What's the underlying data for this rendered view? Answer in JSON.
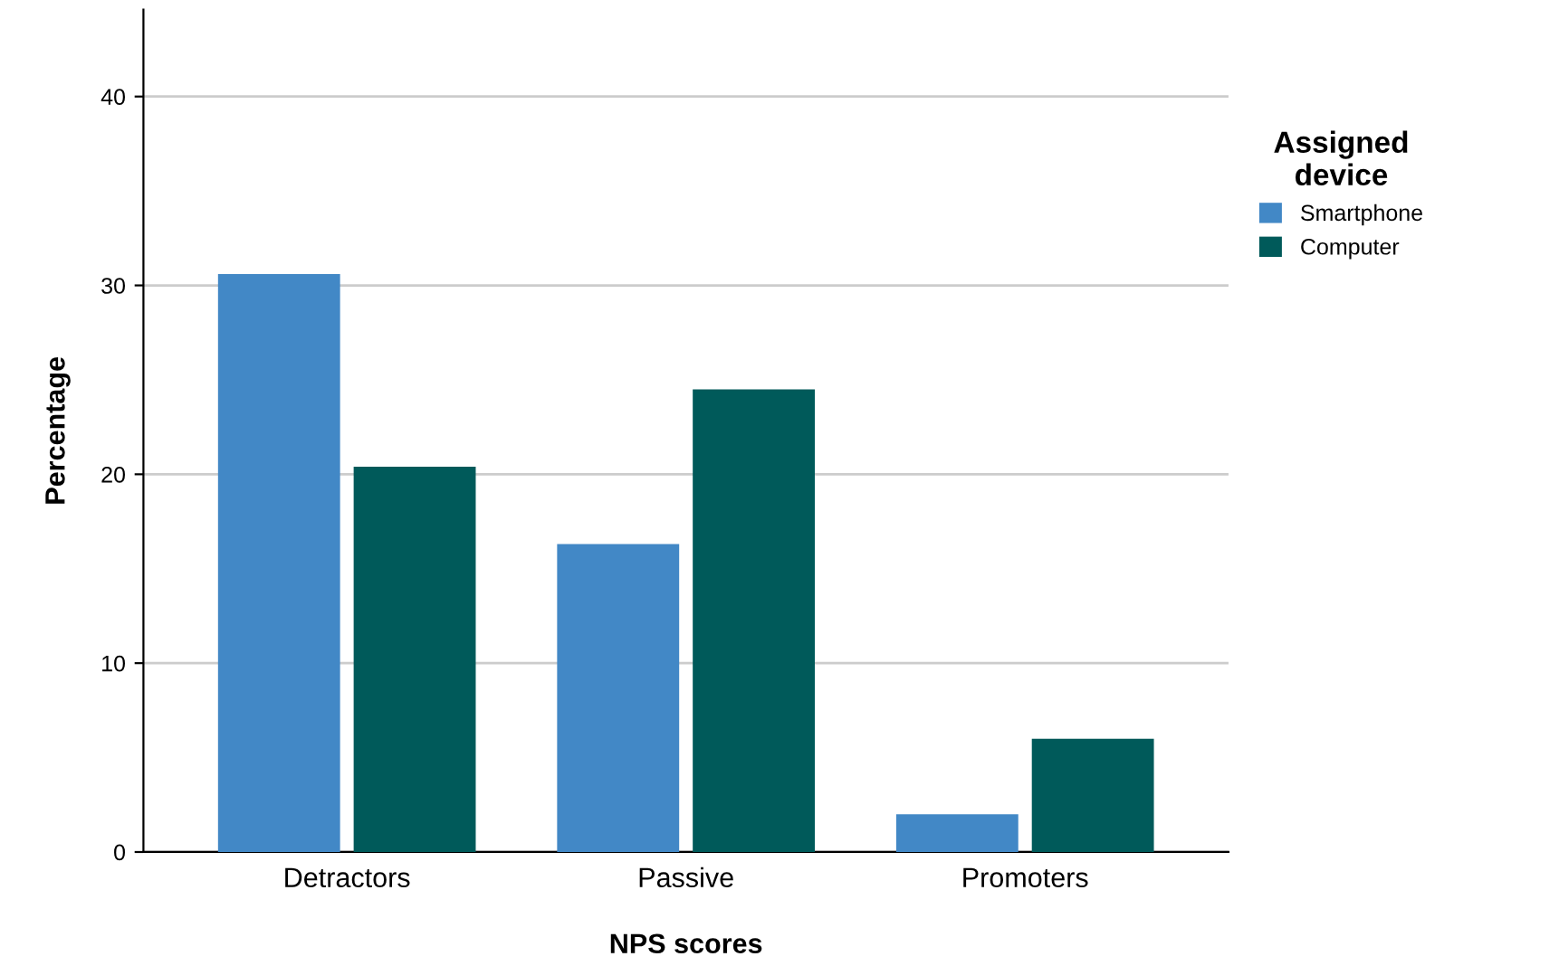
{
  "chart_data": {
    "type": "bar",
    "xlabel": "NPS scores",
    "ylabel": "Percentage",
    "legend_title": "Assigned\ndevice",
    "categories": [
      "Detractors",
      "Passive",
      "Promoters"
    ],
    "series": [
      {
        "name": "Smartphone",
        "color": "#4288c6",
        "values": [
          30.6,
          16.3,
          2.0
        ]
      },
      {
        "name": "Computer",
        "color": "#005a5a",
        "values": [
          20.4,
          24.5,
          6.0
        ]
      }
    ],
    "ylim": [
      0,
      44.6
    ],
    "yticks": [
      0,
      10,
      20,
      30,
      40
    ],
    "grid": "y",
    "legend": "right"
  }
}
